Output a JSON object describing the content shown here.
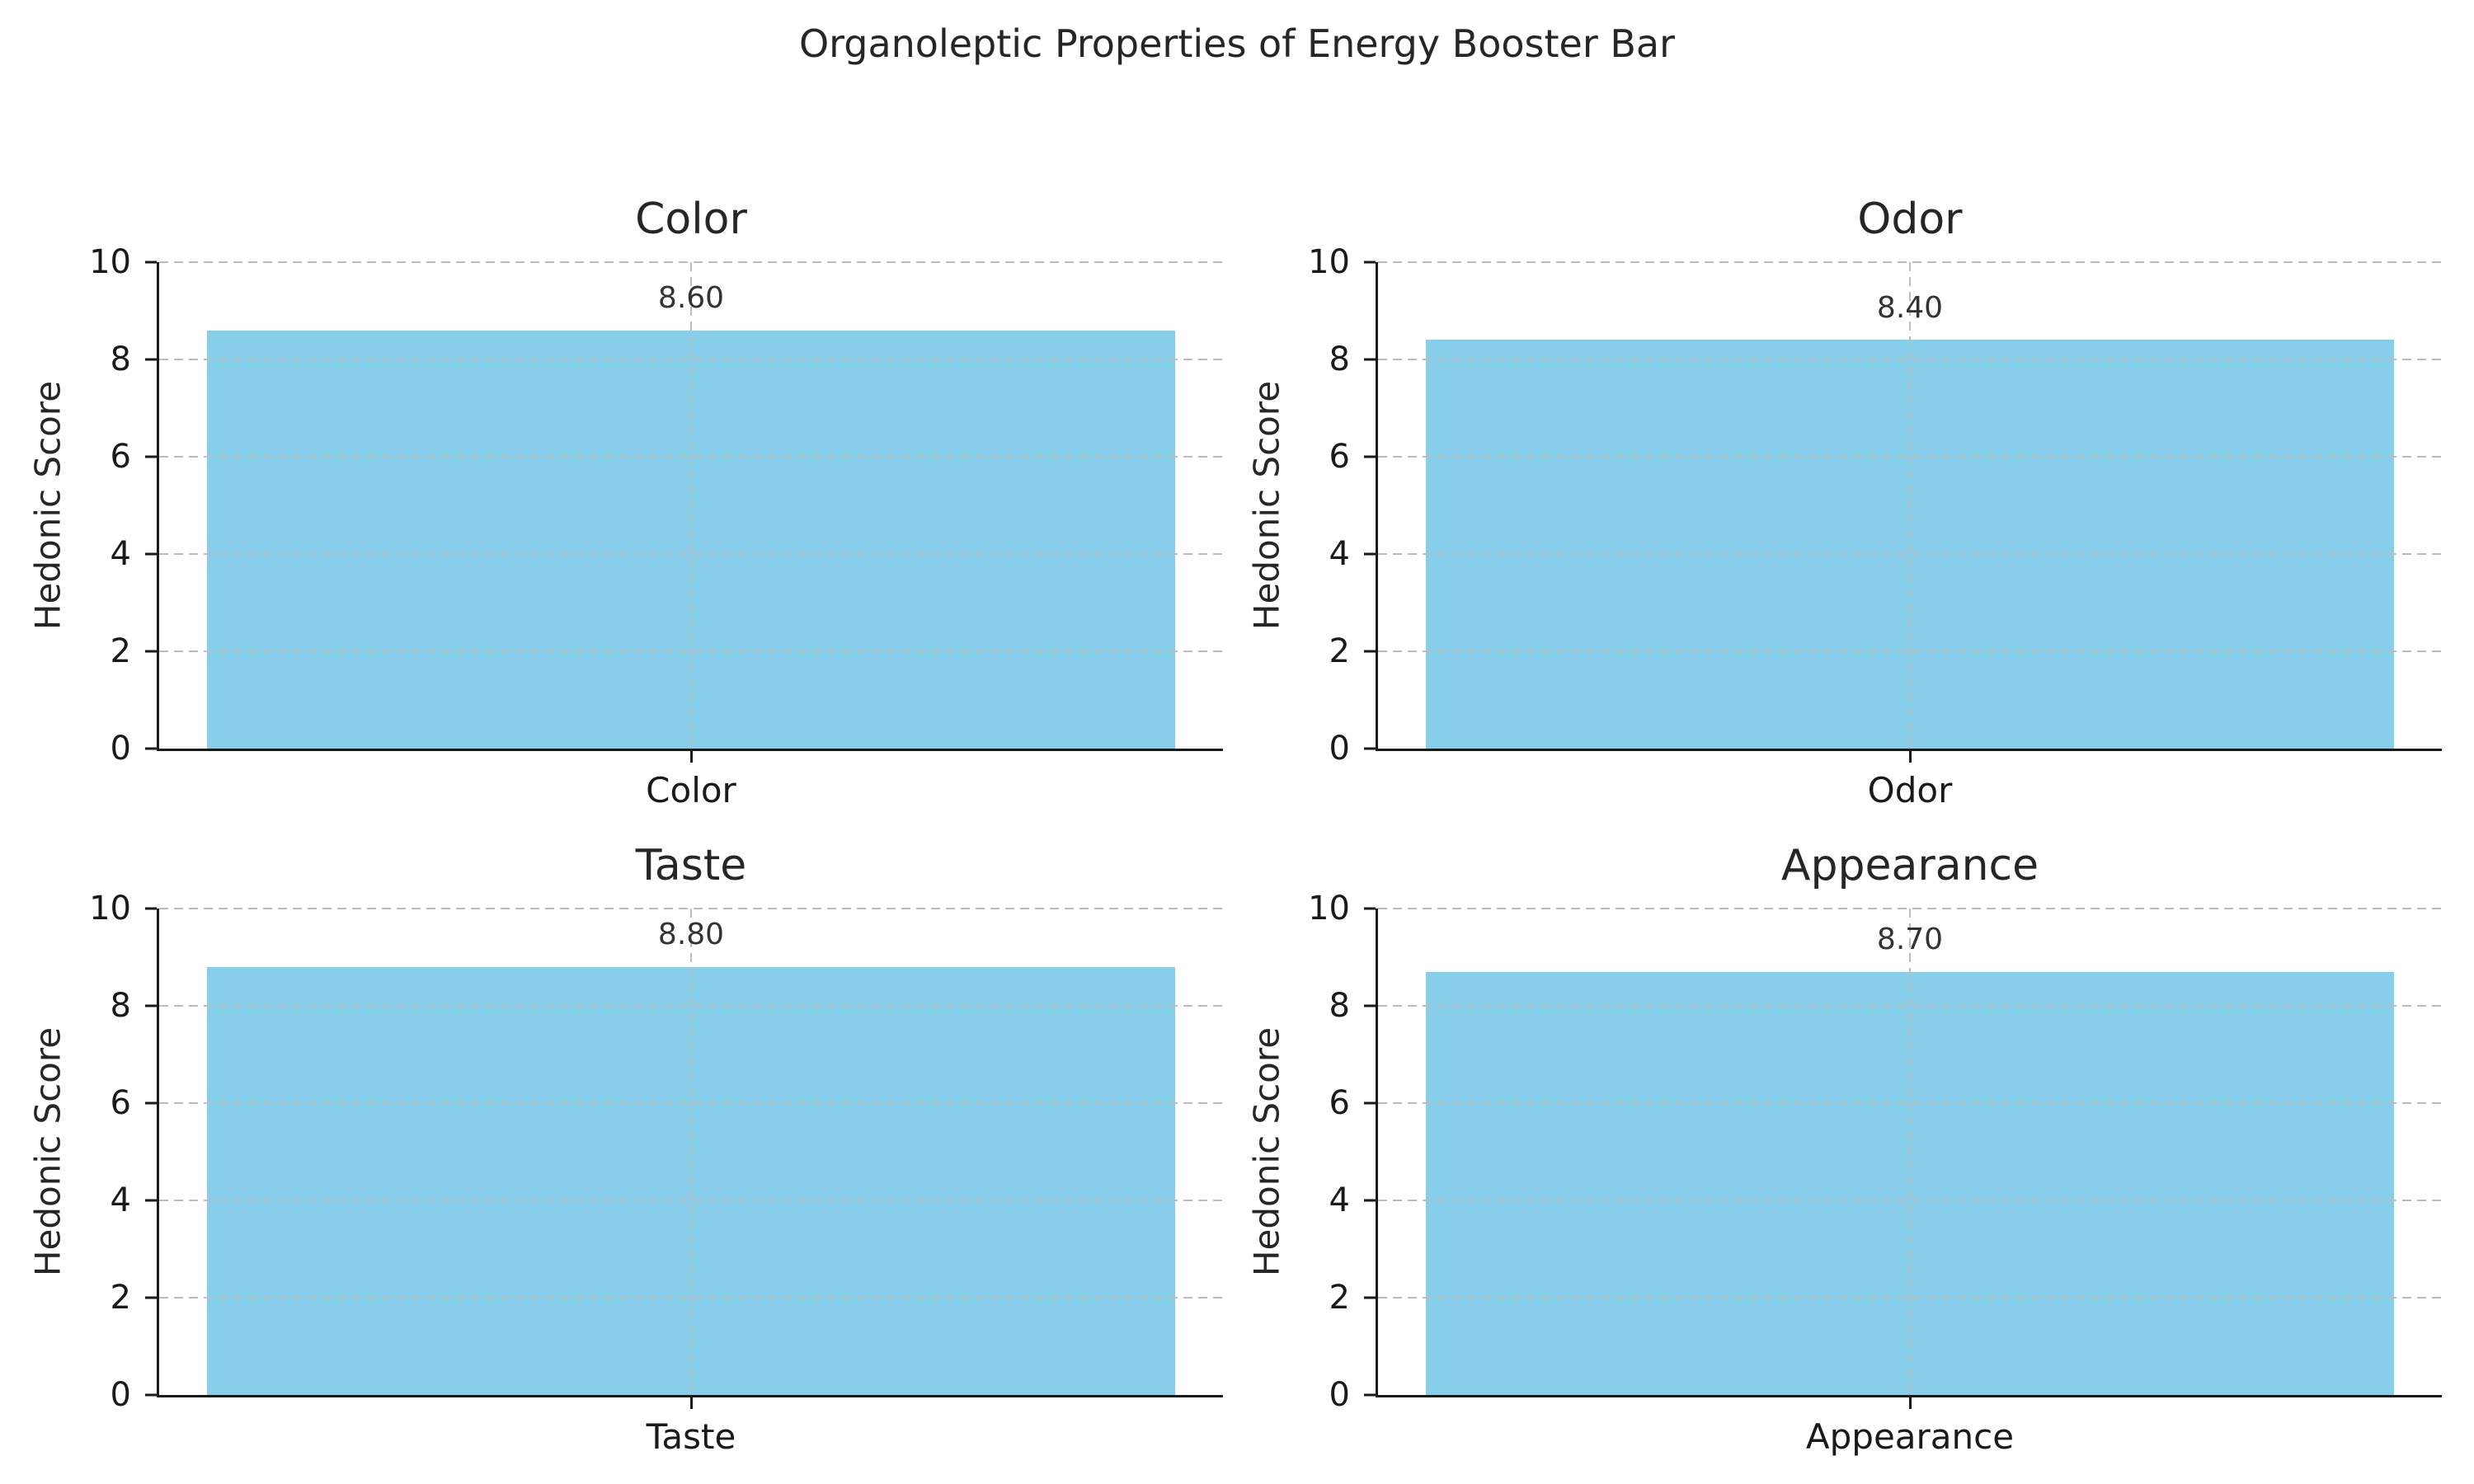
{
  "figure": {
    "background": "#ffffff"
  },
  "chart_data": {
    "type": "bar",
    "suptitle": "Organoleptic Properties of Energy Booster Bar",
    "ylabel": "Hedonic Score",
    "ylim": [
      0,
      10
    ],
    "yticks": [
      0,
      2,
      4,
      6,
      8,
      10
    ],
    "bar_color": "#87CEEB",
    "grid": {
      "style": "dashed",
      "color": "#bcbcbc",
      "horizontal": true,
      "vertical_center_line": true,
      "drawn_over_bars": true
    },
    "legend": "none",
    "label_offset_units": 0.35,
    "panels": [
      {
        "title": "Color",
        "category": "Color",
        "value": 8.6,
        "value_label": "8.60"
      },
      {
        "title": "Odor",
        "category": "Odor",
        "value": 8.4,
        "value_label": "8.40"
      },
      {
        "title": "Taste",
        "category": "Taste",
        "value": 8.8,
        "value_label": "8.80"
      },
      {
        "title": "Appearance",
        "category": "Appearance",
        "value": 8.7,
        "value_label": "8.70"
      }
    ]
  }
}
